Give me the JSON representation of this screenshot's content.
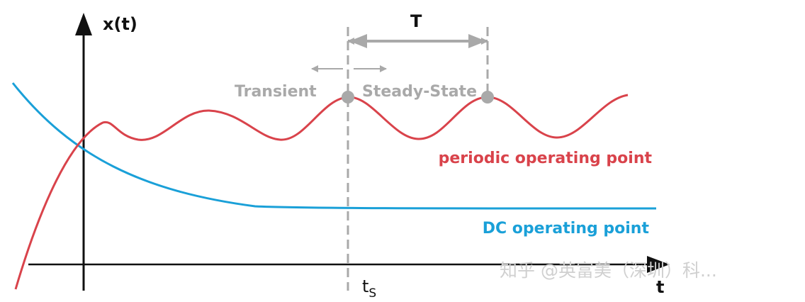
{
  "labels": {
    "y_axis": "x(t)",
    "x_axis": "t",
    "period": "T",
    "transient": "Transient",
    "steady_state": "Steady-State",
    "ts_main": "t",
    "ts_sub": "S",
    "periodic_curve": "periodic operating point",
    "dc_curve": "DC operating point"
  },
  "watermark": "知乎 @英富美（深圳）科...",
  "colors": {
    "axes": "#111111",
    "periodic": "#d9434b",
    "dc": "#1aa0d8",
    "annotation_gray": "#a9a9a9",
    "watermark": "#d0d0d0"
  }
}
